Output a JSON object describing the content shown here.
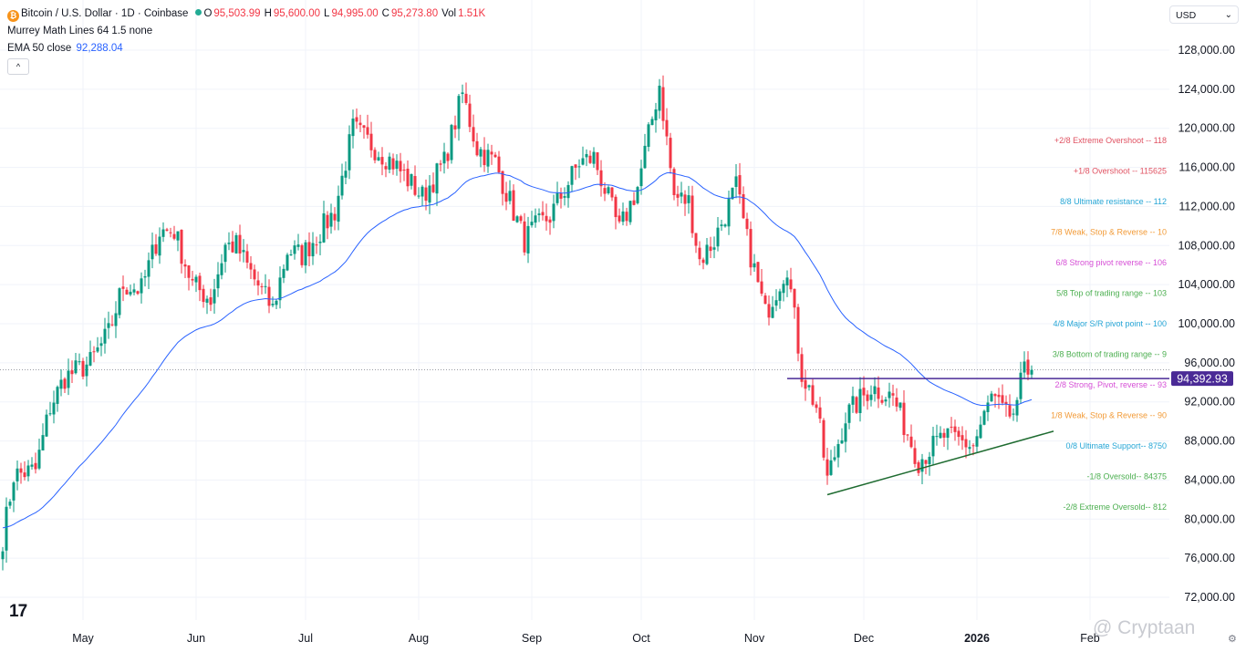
{
  "header": {
    "symbol": "Bitcoin / U.S. Dollar · 1D · Coinbase",
    "ohlc": [
      {
        "k": "O",
        "v": "95,503.99"
      },
      {
        "k": "H",
        "v": "95,600.00"
      },
      {
        "k": "L",
        "v": "94,995.00"
      },
      {
        "k": "C",
        "v": "95,273.80"
      },
      {
        "k": "Vol",
        "v": "1.51K"
      }
    ],
    "murrey": "Murrey Math Lines 64 1.5 none",
    "ema_label": "EMA 50 close",
    "ema_value": "92,288.04",
    "collapse_label": "^"
  },
  "currency": {
    "selected": "USD"
  },
  "logo": "17",
  "watermark": "@ Cryptaan",
  "colors": {
    "up": "#089981",
    "down": "#f23645",
    "ema": "#2962ff",
    "hline": "#4a2a96",
    "trend": "#1e6b30",
    "last_price": "#787b86"
  },
  "chart_data": {
    "type": "candlestick",
    "ylim": [
      70000,
      130000
    ],
    "y_ticks": [
      "128,000.00",
      "124,000.00",
      "120,000.00",
      "116,000.00",
      "112,000.00",
      "108,000.00",
      "104,000.00",
      "100,000.00",
      "96,000.00",
      "92,000.00",
      "88,000.00",
      "84,000.00",
      "80,000.00",
      "76,000.00",
      "72,000.00"
    ],
    "y_tick_values": [
      128000,
      124000,
      120000,
      116000,
      112000,
      108000,
      104000,
      100000,
      96000,
      92000,
      88000,
      84000,
      80000,
      76000,
      72000
    ],
    "x_ticks": [
      "May",
      "Jun",
      "Jul",
      "Aug",
      "Sep",
      "Oct",
      "Nov",
      "Dec",
      "2026",
      "Feb"
    ],
    "x_tick_dates": [
      "2025-05-01",
      "2025-06-01",
      "2025-07-01",
      "2025-08-01",
      "2025-09-01",
      "2025-10-01",
      "2025-11-01",
      "2025-12-01",
      "2026-01-01",
      "2026-02-01"
    ],
    "anchors": [
      [
        "2025-04-09",
        78000
      ],
      [
        "2025-04-12",
        84500
      ],
      [
        "2025-04-18",
        85000
      ],
      [
        "2025-04-22",
        91500
      ],
      [
        "2025-04-26",
        94500
      ],
      [
        "2025-05-03",
        96000
      ],
      [
        "2025-05-08",
        99000
      ],
      [
        "2025-05-12",
        104000
      ],
      [
        "2025-05-17",
        103500
      ],
      [
        "2025-05-22",
        109500
      ],
      [
        "2025-05-26",
        109500
      ],
      [
        "2025-05-31",
        104000
      ],
      [
        "2025-06-05",
        102500
      ],
      [
        "2025-06-09",
        108000
      ],
      [
        "2025-06-12",
        108000
      ],
      [
        "2025-06-17",
        104500
      ],
      [
        "2025-06-22",
        101500
      ],
      [
        "2025-06-26",
        107500
      ],
      [
        "2025-06-30",
        107000
      ],
      [
        "2025-07-09",
        111500
      ],
      [
        "2025-07-14",
        120000
      ],
      [
        "2025-07-20",
        118000
      ],
      [
        "2025-07-25",
        116500
      ],
      [
        "2025-08-02",
        113000
      ],
      [
        "2025-08-08",
        116500
      ],
      [
        "2025-08-13",
        123500
      ],
      [
        "2025-08-17",
        118000
      ],
      [
        "2025-08-22",
        116500
      ],
      [
        "2025-08-30",
        108500
      ],
      [
        "2025-09-01",
        109500
      ],
      [
        "2025-09-06",
        111000
      ],
      [
        "2025-09-14",
        116500
      ],
      [
        "2025-09-18",
        117000
      ],
      [
        "2025-09-25",
        109500
      ],
      [
        "2025-09-30",
        114000
      ],
      [
        "2025-10-06",
        124500
      ],
      [
        "2025-10-10",
        113000
      ],
      [
        "2025-10-14",
        112500
      ],
      [
        "2025-10-17",
        106500
      ],
      [
        "2025-10-21",
        108500
      ],
      [
        "2025-10-27",
        114000
      ],
      [
        "2025-10-30",
        108500
      ],
      [
        "2025-11-04",
        101000
      ],
      [
        "2025-11-10",
        106000
      ],
      [
        "2025-11-14",
        95000
      ],
      [
        "2025-11-18",
        91500
      ],
      [
        "2025-11-21",
        84000
      ],
      [
        "2025-11-26",
        90500
      ],
      [
        "2025-12-03",
        93500
      ],
      [
        "2025-12-09",
        92500
      ],
      [
        "2025-12-16",
        86000
      ],
      [
        "2025-12-23",
        88500
      ],
      [
        "2025-12-31",
        87500
      ],
      [
        "2026-01-05",
        92500
      ],
      [
        "2026-01-09",
        90500
      ],
      [
        "2026-01-12",
        91000
      ],
      [
        "2026-01-14",
        96500
      ],
      [
        "2026-01-16",
        95273.8
      ]
    ],
    "ema50": {
      "name": "EMA 50 close",
      "last": 92288.04
    },
    "last_price": 95273.8,
    "hline": {
      "value": 94392.93,
      "label": "94,392.93",
      "start": "2025-11-10"
    },
    "trendline": {
      "from": [
        "2025-11-21",
        82500
      ],
      "to": [
        "2026-01-22",
        89000
      ]
    },
    "murrey_levels": [
      {
        "label": "+2/8 Extreme Overshoot --  118",
        "value": 118750,
        "color": "#e05262"
      },
      {
        "label": "+1/8 Overshoot --  115625",
        "value": 115625,
        "color": "#e05262"
      },
      {
        "label": "8/8 Ultimate resistance --  112",
        "value": 112500,
        "color": "#26a6d6"
      },
      {
        "label": "7/8 Weak, Stop & Reverse --  10",
        "value": 109375,
        "color": "#f29b38"
      },
      {
        "label": "6/8 Strong pivot reverse --  106",
        "value": 106250,
        "color": "#d64fd6"
      },
      {
        "label": "5/8 Top of trading range --  103",
        "value": 103125,
        "color": "#4caf50"
      },
      {
        "label": "4/8 Major S/R pivot point --  100",
        "value": 100000,
        "color": "#26a6d6"
      },
      {
        "label": "3/8 Bottom of trading range --  9",
        "value": 96875,
        "color": "#4caf50"
      },
      {
        "label": "2/8 Strong, Pivot, reverse --  93",
        "value": 93750,
        "color": "#d64fd6"
      },
      {
        "label": "1/8 Weak, Stop & Reverse --  90",
        "value": 90625,
        "color": "#f29b38"
      },
      {
        "label": "0/8 Ultimate Support--  8750",
        "value": 87500,
        "color": "#26a6d6"
      },
      {
        "label": "-1/8 Oversold--  84375",
        "value": 84375,
        "color": "#4caf50"
      },
      {
        "label": "-2/8 Extreme Oversold--  812",
        "value": 81250,
        "color": "#4caf50"
      }
    ]
  }
}
